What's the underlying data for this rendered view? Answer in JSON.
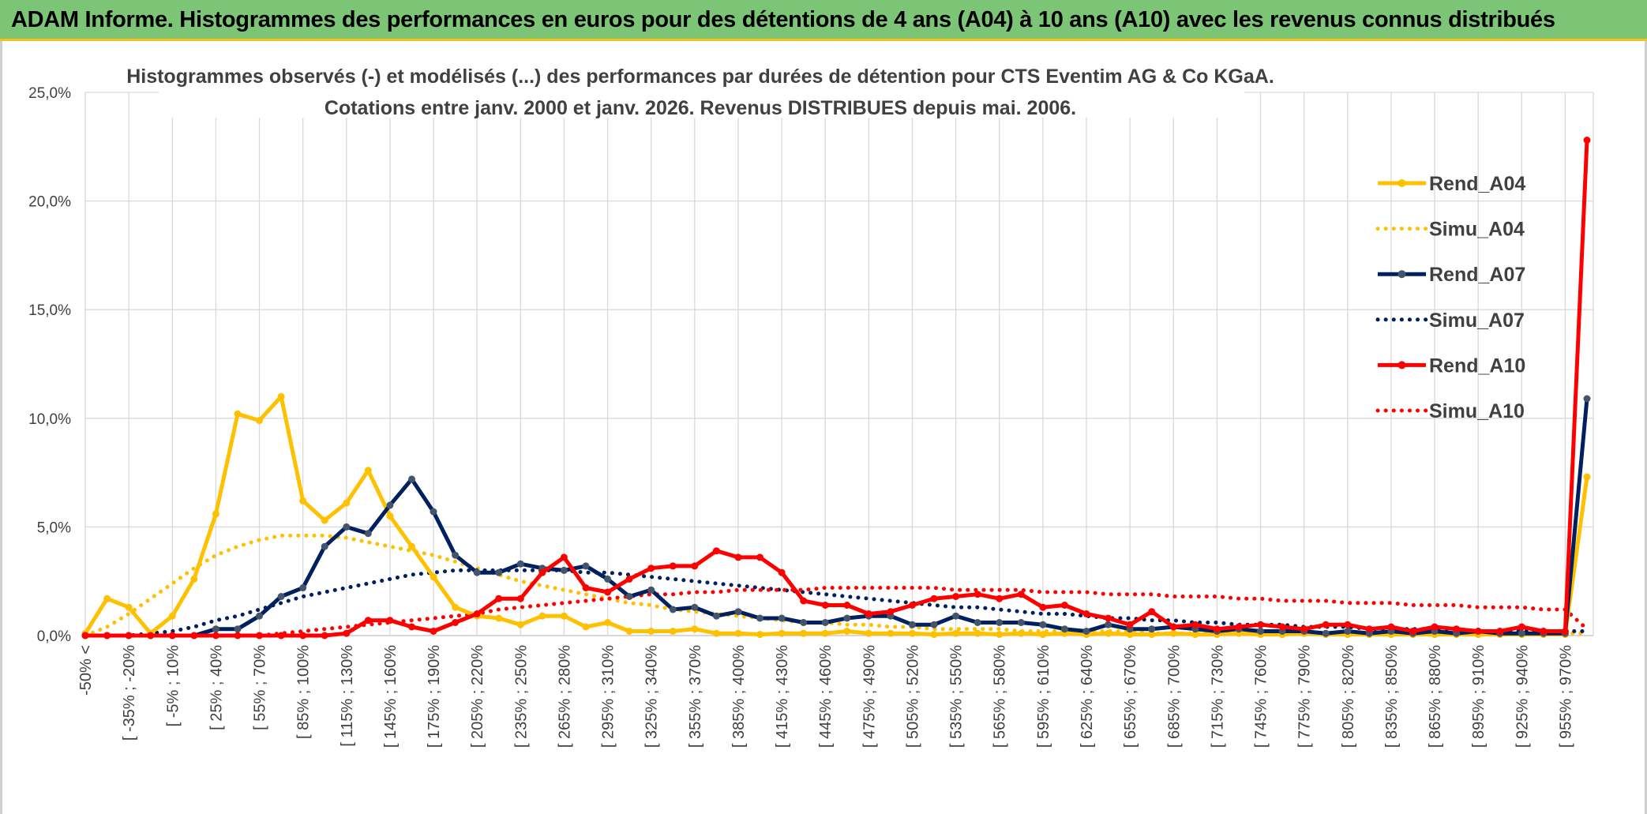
{
  "banner": {
    "title": "ADAM Informe. Histogrammes des performances en euros pour des détentions de 4 ans (A04) à 10 ans (A10) avec les revenus connus distribués"
  },
  "colors": {
    "banner_bg": "#7cc576",
    "banner_border": "#f0c419",
    "a04": "#ffc000",
    "a07": "#002060",
    "a07_marker": "#44546a",
    "a10": "#ff0000",
    "grid": "#d9d9d9"
  },
  "chart_data": {
    "type": "line",
    "title_lines": [
      "Histogrammes observés (-) et modélisés (...) des performances par durées de détention pour CTS Eventim AG & Co KGaA.",
      "Cotations entre janv. 2000 et janv. 2026.  Revenus DISTRIBUES depuis mai. 2006."
    ],
    "ylabel": "",
    "xlabel": "",
    "ylim": [
      0,
      25
    ],
    "yticks": [
      0,
      5,
      10,
      15,
      20,
      25
    ],
    "ytick_labels": [
      "0,0%",
      "5,0%",
      "10,0%",
      "15,0%",
      "20,0%",
      "25,0%"
    ],
    "tick_labels": [
      "-50% <",
      "[ -35% ; -20%",
      "[ -5% ; 10%",
      "[ 25% ; 40%",
      "[ 55% ; 70%",
      "[ 85% ; 100%",
      "[ 115% ; 130%",
      "[ 145% ; 160%",
      "[ 175% ; 190%",
      "[ 205% ; 220%",
      "[ 235% ; 250%",
      "[ 265% ; 280%",
      "[ 295% ; 310%",
      "[ 325% ; 340%",
      "[ 355% ; 370%",
      "[ 385% ; 400%",
      "[ 415% ; 430%",
      "[ 445% ; 460%",
      "[ 475% ; 490%",
      "[ 505% ; 520%",
      "[ 535% ; 550%",
      "[ 565% ; 580%",
      "[ 595% ; 610%",
      "[ 625% ; 640%",
      "[ 655% ; 670%",
      "[ 685% ; 700%",
      "[ 715% ; 730%",
      "[ 745% ; 760%",
      "[ 775% ; 790%",
      "[ 805% ; 820%",
      "[ 835% ; 850%",
      "[ 865% ; 880%",
      "[ 895% ; 910%",
      "[ 925% ; 940%",
      "[ 955% ; 970%"
    ],
    "tick_every": 2,
    "series": [
      {
        "name": "Rend_A04",
        "style": "solid",
        "color": "#ffc000",
        "marker": "#ffc000",
        "values": [
          0.1,
          1.7,
          1.3,
          0.1,
          0.9,
          2.6,
          5.6,
          10.2,
          9.9,
          11.0,
          6.2,
          5.3,
          6.1,
          7.6,
          5.5,
          4.1,
          2.7,
          1.3,
          0.9,
          0.8,
          0.5,
          0.9,
          0.9,
          0.4,
          0.6,
          0.2,
          0.2,
          0.2,
          0.3,
          0.1,
          0.1,
          0.05,
          0.1,
          0.1,
          0.1,
          0.2,
          0.1,
          0.1,
          0.1,
          0.05,
          0.1,
          0.1,
          0.05,
          0.1,
          0.05,
          0.1,
          0.05,
          0.1,
          0.05,
          0.05,
          0.1,
          0.05,
          0.05,
          0.1,
          0.05,
          0.05,
          0.1,
          0.05,
          0.05,
          0.05,
          0.05,
          0.05,
          0.05,
          0.05,
          0.05,
          0.05,
          0.05,
          0.05,
          0.05,
          7.3
        ]
      },
      {
        "name": "Simu_A04",
        "style": "dotted",
        "color": "#ffc000",
        "values": [
          0.0,
          0.4,
          1.0,
          1.7,
          2.4,
          3.1,
          3.7,
          4.1,
          4.4,
          4.6,
          4.6,
          4.6,
          4.5,
          4.3,
          4.1,
          3.9,
          3.7,
          3.4,
          3.1,
          2.8,
          2.5,
          2.3,
          2.1,
          1.9,
          1.7,
          1.5,
          1.4,
          1.2,
          1.1,
          1.0,
          0.9,
          0.8,
          0.7,
          0.6,
          0.6,
          0.5,
          0.5,
          0.4,
          0.4,
          0.3,
          0.3,
          0.3,
          0.3,
          0.2,
          0.2,
          0.2,
          0.2,
          0.2,
          0.2,
          0.1,
          0.1,
          0.1,
          0.1,
          0.1,
          0.1,
          0.1,
          0.1,
          0.1,
          0.1,
          0.1,
          0.1,
          0.1,
          0.1,
          0.1,
          0.1,
          0.1,
          0.1,
          0.1,
          0.1,
          0.1
        ]
      },
      {
        "name": "Rend_A07",
        "style": "solid",
        "color": "#002060",
        "marker": "#44546a",
        "values": [
          0.0,
          0.0,
          0.0,
          0.0,
          0.0,
          0.0,
          0.3,
          0.3,
          0.9,
          1.8,
          2.2,
          4.1,
          5.0,
          4.7,
          6.0,
          7.2,
          5.7,
          3.7,
          2.9,
          2.9,
          3.3,
          3.1,
          3.0,
          3.2,
          2.6,
          1.8,
          2.1,
          1.2,
          1.3,
          0.9,
          1.1,
          0.8,
          0.8,
          0.6,
          0.6,
          0.8,
          0.9,
          0.9,
          0.5,
          0.5,
          0.9,
          0.6,
          0.6,
          0.6,
          0.5,
          0.3,
          0.2,
          0.5,
          0.3,
          0.3,
          0.4,
          0.3,
          0.2,
          0.3,
          0.2,
          0.2,
          0.2,
          0.1,
          0.2,
          0.1,
          0.2,
          0.1,
          0.2,
          0.1,
          0.2,
          0.1,
          0.1,
          0.1,
          0.1,
          10.9
        ]
      },
      {
        "name": "Simu_A07",
        "style": "dotted",
        "color": "#002060",
        "values": [
          0.0,
          0.0,
          0.0,
          0.1,
          0.2,
          0.4,
          0.7,
          0.9,
          1.2,
          1.5,
          1.8,
          2.0,
          2.2,
          2.4,
          2.6,
          2.8,
          2.9,
          3.0,
          3.0,
          3.0,
          3.0,
          3.0,
          3.0,
          2.9,
          2.9,
          2.8,
          2.7,
          2.6,
          2.5,
          2.4,
          2.3,
          2.2,
          2.1,
          2.0,
          1.9,
          1.8,
          1.7,
          1.6,
          1.5,
          1.4,
          1.3,
          1.3,
          1.2,
          1.1,
          1.0,
          1.0,
          0.9,
          0.8,
          0.8,
          0.7,
          0.7,
          0.6,
          0.6,
          0.5,
          0.5,
          0.5,
          0.4,
          0.4,
          0.4,
          0.3,
          0.3,
          0.3,
          0.3,
          0.3,
          0.2,
          0.2,
          0.2,
          0.2,
          0.2,
          0.2
        ]
      },
      {
        "name": "Rend_A10",
        "style": "solid",
        "color": "#ff0000",
        "marker": "#ff0000",
        "values": [
          0.0,
          0.0,
          0.0,
          0.0,
          0.0,
          0.0,
          0.0,
          0.0,
          0.0,
          0.0,
          0.0,
          0.0,
          0.1,
          0.7,
          0.7,
          0.4,
          0.2,
          0.6,
          1.0,
          1.7,
          1.7,
          2.9,
          3.6,
          2.2,
          2.0,
          2.6,
          3.1,
          3.2,
          3.2,
          3.9,
          3.6,
          3.6,
          2.9,
          1.6,
          1.4,
          1.4,
          1.0,
          1.1,
          1.4,
          1.7,
          1.8,
          1.9,
          1.7,
          1.9,
          1.3,
          1.4,
          1.0,
          0.8,
          0.5,
          1.1,
          0.4,
          0.5,
          0.3,
          0.4,
          0.5,
          0.4,
          0.3,
          0.5,
          0.5,
          0.3,
          0.4,
          0.2,
          0.4,
          0.3,
          0.2,
          0.2,
          0.4,
          0.2,
          0.2,
          22.8
        ]
      },
      {
        "name": "Simu_A10",
        "style": "dotted",
        "color": "#ff0000",
        "values": [
          0.0,
          0.0,
          0.0,
          0.0,
          0.0,
          0.0,
          0.0,
          0.0,
          0.0,
          0.1,
          0.2,
          0.3,
          0.4,
          0.5,
          0.6,
          0.7,
          0.8,
          0.9,
          1.0,
          1.2,
          1.3,
          1.4,
          1.5,
          1.6,
          1.7,
          1.8,
          1.9,
          1.9,
          2.0,
          2.0,
          2.1,
          2.1,
          2.1,
          2.1,
          2.2,
          2.2,
          2.2,
          2.2,
          2.2,
          2.2,
          2.1,
          2.1,
          2.1,
          2.1,
          2.0,
          2.0,
          2.0,
          1.9,
          1.9,
          1.9,
          1.8,
          1.8,
          1.8,
          1.7,
          1.7,
          1.6,
          1.6,
          1.6,
          1.5,
          1.5,
          1.5,
          1.4,
          1.4,
          1.4,
          1.3,
          1.3,
          1.3,
          1.2,
          1.2,
          0.3
        ]
      }
    ],
    "legend": [
      "Rend_A04",
      "Simu_A04",
      "Rend_A07",
      "Simu_A07",
      "Rend_A10",
      "Simu_A10"
    ],
    "legend_position": "right"
  }
}
